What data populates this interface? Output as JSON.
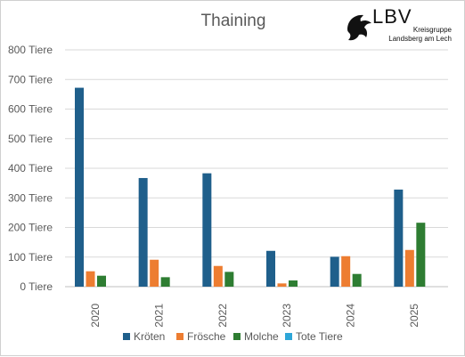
{
  "logo": {
    "brand": "LBV",
    "line1": "Kreisgruppe",
    "line2": "Landsberg am Lech"
  },
  "colors": {
    "kroeten": "#1f5f8b",
    "froesche": "#ed7d31",
    "molche": "#2e7d32",
    "tote": "#2ea6d8",
    "grid": "#d9d9d9",
    "text": "#595959"
  },
  "chart_data": {
    "type": "bar",
    "title": "Thaining",
    "categories": [
      "2020",
      "2021",
      "2022",
      "2023",
      "2024",
      "2025"
    ],
    "series": [
      {
        "name": "Kröten",
        "values": [
          672,
          367,
          383,
          121,
          101,
          328
        ]
      },
      {
        "name": "Frösche",
        "values": [
          52,
          91,
          70,
          11,
          103,
          124
        ]
      },
      {
        "name": "Molche",
        "values": [
          37,
          32,
          50,
          21,
          43,
          216
        ]
      },
      {
        "name": "Tote Tiere",
        "values": [
          0,
          0,
          0,
          0,
          0,
          0
        ]
      }
    ],
    "yticks": [
      "0 Tiere",
      "100 Tiere",
      "200 Tiere",
      "300 Tiere",
      "400 Tiere",
      "500 Tiere",
      "600 Tiere",
      "700 Tiere",
      "800 Tiere"
    ],
    "ylim": [
      0,
      800
    ],
    "grid": true,
    "legend": "bottom"
  }
}
